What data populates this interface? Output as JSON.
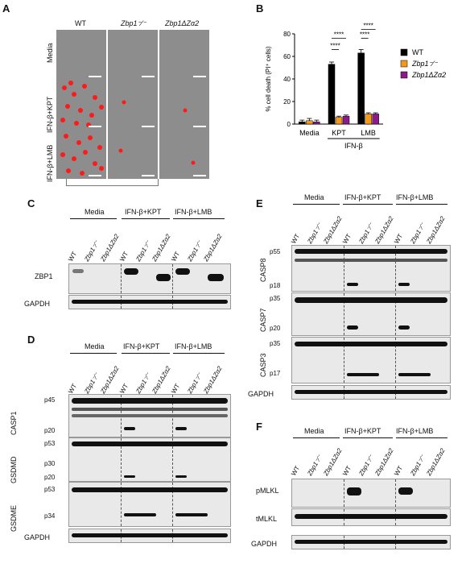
{
  "panelA": {
    "letter": "A",
    "cols": [
      "WT",
      "Zbp1⁻⁄⁻",
      "Zbp1ΔZα2"
    ],
    "rows": [
      "Media",
      "IFN-β+KPT",
      "IFN-β+LMB"
    ]
  },
  "panelB": {
    "letter": "B"
  },
  "panelC": {
    "letter": "C",
    "groups": [
      "Media",
      "IFN-β+KPT",
      "IFN-β+LMB"
    ],
    "lanes": [
      "WT",
      "Zbp1⁻⁄⁻",
      "Zbp1ΔZα2"
    ],
    "rows": [
      "ZBP1",
      "GAPDH"
    ]
  },
  "panelD": {
    "letter": "D",
    "groups": [
      "Media",
      "IFN-β+KPT",
      "IFN-β+LMB"
    ],
    "lanes": [
      "WT",
      "Zbp1⁻⁄⁻",
      "Zbp1ΔZα2"
    ],
    "blocks": [
      {
        "name": "CASP1",
        "markers": [
          "p45",
          "p20"
        ]
      },
      {
        "name": "GSDMD",
        "markers": [
          "p53",
          "p30",
          "p20"
        ]
      },
      {
        "name": "GSDME",
        "markers": [
          "p53",
          "p34"
        ]
      }
    ],
    "gapdh": "GAPDH"
  },
  "panelE": {
    "letter": "E",
    "groups": [
      "Media",
      "IFN-β+KPT",
      "IFN-β+LMB"
    ],
    "lanes": [
      "WT",
      "Zbp1⁻⁄⁻",
      "Zbp1ΔZα2"
    ],
    "blocks": [
      {
        "name": "CASP8",
        "markers": [
          "p55",
          "p18"
        ]
      },
      {
        "name": "CASP7",
        "markers": [
          "p35",
          "p20"
        ]
      },
      {
        "name": "CASP3",
        "markers": [
          "p35",
          "p17"
        ]
      }
    ],
    "gapdh": "GAPDH"
  },
  "panelF": {
    "letter": "F",
    "groups": [
      "Media",
      "IFN-β+KPT",
      "IFN-β+LMB"
    ],
    "lanes": [
      "WT",
      "Zbp1⁻⁄⁻",
      "Zbp1ΔZα2"
    ],
    "rows": [
      "pMLKL",
      "tMLKL",
      "GAPDH"
    ]
  },
  "chart_data": {
    "type": "bar",
    "ylabel": "% cell death (PI⁺ cells)",
    "ylim": [
      0,
      80
    ],
    "yticks": [
      0,
      20,
      40,
      60,
      80
    ],
    "categories": [
      "Media",
      "KPT",
      "LMB"
    ],
    "group_label": "IFN-β",
    "series": [
      {
        "name": "WT",
        "color": "#000000",
        "values": [
          2,
          53,
          63
        ],
        "errors": [
          1.5,
          2,
          3
        ]
      },
      {
        "name": "Zbp1⁻⁄⁻",
        "color": "#f39a1e",
        "values": [
          3,
          6,
          9
        ],
        "errors": [
          2,
          1,
          1
        ]
      },
      {
        "name": "Zbp1ΔZα2",
        "color": "#8a1c8a",
        "values": [
          2,
          7,
          9
        ],
        "errors": [
          1.5,
          1,
          1
        ]
      }
    ],
    "annotations": [
      "****",
      "****",
      "****",
      "****"
    ]
  }
}
